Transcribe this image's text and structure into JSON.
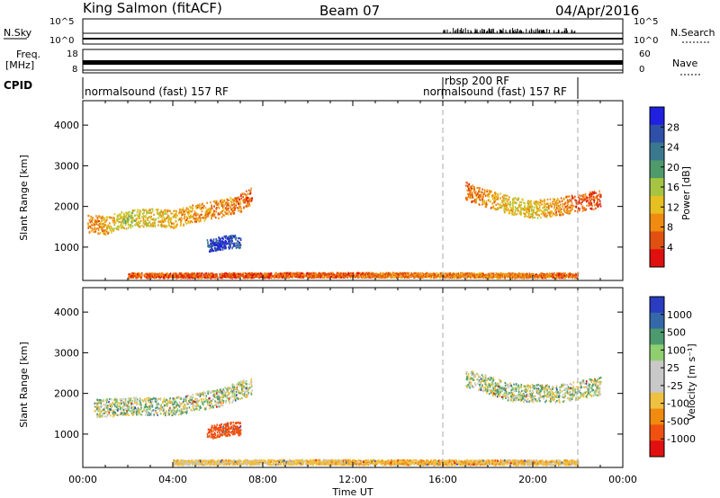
{
  "header": {
    "station": "King Salmon (fitACF)",
    "beam": "Beam 07",
    "date": "04/Apr/2016"
  },
  "top_panels": {
    "nsky_label": "N.Sky",
    "nsky_ticks": [
      "10^5",
      "10^0"
    ],
    "nsearch_label": "N.Search",
    "nsearch_ticks": [
      "10^5",
      "10^0"
    ],
    "freq_label_1": "Freq.",
    "freq_label_2": "[MHz]",
    "freq_ticks": [
      "18",
      "8"
    ],
    "nave_label": "Nave",
    "nave_ticks": [
      "60",
      "0"
    ],
    "cpid_label": "CPID",
    "cpid_segments": [
      {
        "label": "normalsound (fast) 157 RF",
        "start_h": 0,
        "end_h": 16
      },
      {
        "label": "rbsp 200 RF",
        "start_h": 16,
        "end_h": 16.1
      },
      {
        "label": "normalsound (fast) 157 RF",
        "start_h": 16.1,
        "end_h": 22
      }
    ]
  },
  "x_axis": {
    "label": "Time UT",
    "ticks": [
      "00:00",
      "04:00",
      "08:00",
      "12:00",
      "16:00",
      "20:00",
      "00:00"
    ]
  },
  "power_panel": {
    "ylabel": "Slant Range [km]",
    "yticks": [
      "1000",
      "2000",
      "3000",
      "4000"
    ],
    "colorbar_label": "Power [dB]",
    "colorbar_ticks": [
      "4",
      "8",
      "12",
      "16",
      "20",
      "24",
      "28"
    ],
    "colors": [
      "#2020e0",
      "#2f4fa8",
      "#3a7890",
      "#4f9a6a",
      "#a5c542",
      "#e5c020",
      "#f08a10",
      "#e05010",
      "#e01010"
    ]
  },
  "velocity_panel": {
    "ylabel": "Slant Range [km]",
    "yticks": [
      "1000",
      "2000",
      "3000",
      "4000"
    ],
    "colorbar_label": "Velocity [m s⁻¹]",
    "colorbar_ticks": [
      "1000",
      "500",
      "100",
      "25",
      "-25",
      "-100",
      "-500",
      "-1000"
    ],
    "colors": [
      "#2a3cc0",
      "#3468a8",
      "#4c9a6e",
      "#8fcf70",
      "#c8c8c8",
      "#c8c8c8",
      "#f0c040",
      "#f08a10",
      "#f05010",
      "#e01010"
    ]
  },
  "chart_data": [
    {
      "type": "heatmap",
      "title": "Beam 07",
      "xlabel": "Time UT",
      "ylabel": "Slant Range [km]",
      "xlim_hours": [
        0,
        24
      ],
      "ylim_km": [
        180,
        4600
      ],
      "colorbar": "Power [dB]",
      "clim": [
        0,
        30
      ],
      "series": [
        {
          "name": "band",
          "points": [
            [
              0.2,
              1600,
              8
            ],
            [
              1.0,
              1550,
              10
            ],
            [
              1.5,
              1650,
              12
            ],
            [
              2.0,
              1700,
              14
            ],
            [
              3.0,
              1750,
              12
            ],
            [
              4.0,
              1700,
              10
            ],
            [
              5.0,
              1850,
              9
            ],
            [
              6.0,
              1950,
              8
            ],
            [
              7.0,
              2100,
              7
            ],
            [
              7.5,
              2300,
              6
            ]
          ]
        },
        {
          "name": "patch",
          "points": [
            [
              5.5,
              1050,
              24
            ],
            [
              6.0,
              1100,
              27
            ],
            [
              6.5,
              1150,
              26
            ],
            [
              7.0,
              1150,
              24
            ]
          ]
        },
        {
          "name": "band",
          "points": [
            [
              17.0,
              2400,
              6
            ],
            [
              18.0,
              2200,
              9
            ],
            [
              19.0,
              2050,
              12
            ],
            [
              20.0,
              1950,
              12
            ],
            [
              21.0,
              2000,
              9
            ],
            [
              22.0,
              2100,
              6
            ],
            [
              23.0,
              2200,
              4
            ]
          ]
        },
        {
          "name": "band",
          "points": [
            [
              2.0,
              320,
              6
            ],
            [
              6.0,
              320,
              5
            ],
            [
              10.0,
              330,
              6
            ],
            [
              14.0,
              330,
              7
            ],
            [
              18.0,
              320,
              8
            ],
            [
              22.0,
              320,
              6
            ]
          ]
        }
      ]
    },
    {
      "type": "heatmap",
      "title": "Beam 07",
      "xlabel": "Time UT",
      "ylabel": "Slant Range [km]",
      "xlim_hours": [
        0,
        24
      ],
      "ylim_km": [
        180,
        4600
      ],
      "colorbar": "Velocity [m s⁻¹]",
      "clim": [
        -1000,
        1000
      ],
      "series": [
        {
          "name": "band",
          "points": [
            [
              0.5,
              1650,
              0
            ],
            [
              2.0,
              1700,
              0
            ],
            [
              4.0,
              1700,
              0
            ],
            [
              6.0,
              1900,
              0
            ],
            [
              7.5,
              2200,
              -20
            ]
          ]
        },
        {
          "name": "patch",
          "points": [
            [
              5.5,
              1050,
              -300
            ],
            [
              6.5,
              1150,
              -400
            ],
            [
              7.0,
              1150,
              -300
            ]
          ]
        },
        {
          "name": "band",
          "points": [
            [
              17.0,
              2400,
              0
            ],
            [
              19.0,
              2050,
              0
            ],
            [
              21.0,
              2000,
              0
            ],
            [
              23.0,
              2200,
              0
            ]
          ]
        },
        {
          "name": "band",
          "points": [
            [
              4.0,
              320,
              -50
            ],
            [
              10.0,
              330,
              -60
            ],
            [
              16.0,
              320,
              -80
            ],
            [
              22.0,
              320,
              -60
            ]
          ]
        }
      ]
    }
  ]
}
